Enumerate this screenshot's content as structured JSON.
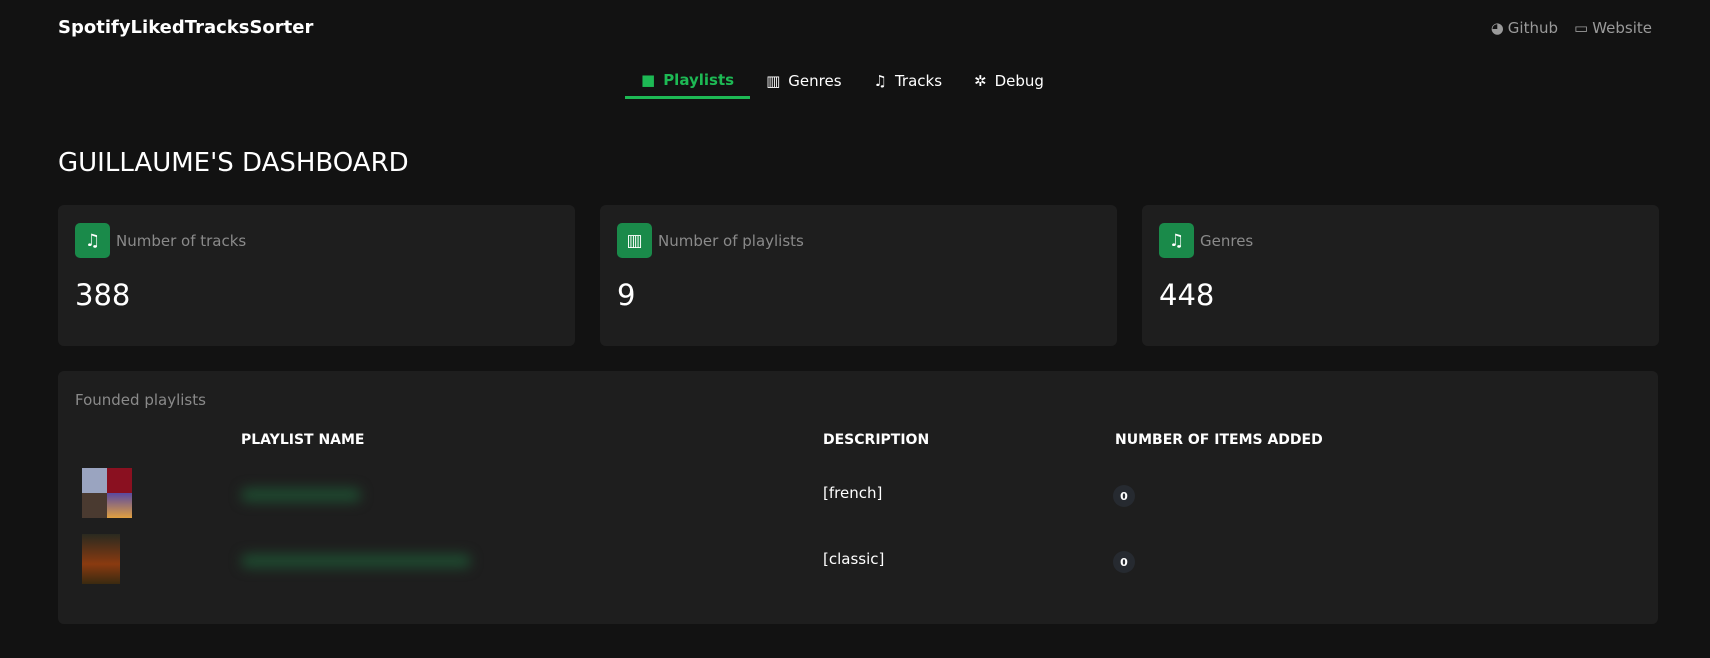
{
  "app": {
    "title": "SpotifyLikedTracksSorter"
  },
  "links": [
    {
      "label": "Github",
      "icon": "github-icon"
    },
    {
      "label": "Website",
      "icon": "monitor-icon"
    }
  ],
  "nav": {
    "tabs": [
      {
        "label": "Playlists",
        "icon": "folder-icon",
        "active": true
      },
      {
        "label": "Genres",
        "icon": "library-icon"
      },
      {
        "label": "Tracks",
        "icon": "music-note-icon"
      },
      {
        "label": "Debug",
        "icon": "bug-icon"
      }
    ]
  },
  "heading": "GUILLAUME'S DASHBOARD",
  "stats": [
    {
      "label": "Number of tracks",
      "value": "388",
      "icon": "music-note-icon"
    },
    {
      "label": "Number of playlists",
      "value": "9",
      "icon": "library-icon"
    },
    {
      "label": "Genres",
      "value": "448",
      "icon": "music-note-icon"
    }
  ],
  "panel": {
    "title": "Founded playlists",
    "columns": [
      "PLAYLIST NAME",
      "DESCRIPTION",
      "NUMBER OF ITEMS ADDED"
    ],
    "rows": [
      {
        "description": "[french]",
        "items_added": "0"
      },
      {
        "description": "[classic]",
        "items_added": "0"
      }
    ]
  },
  "colors": {
    "accent": "#1db954",
    "icon_bg": "#1a8a4a",
    "background": "#121212",
    "card": "#1e1e1e"
  }
}
